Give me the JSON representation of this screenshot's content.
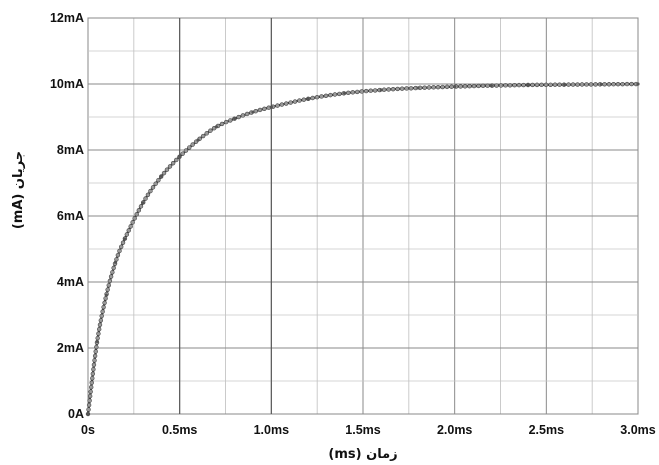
{
  "chart_data": {
    "type": "line",
    "xlabel": "زمان (ms)",
    "ylabel": "جریان (mA)",
    "x_ticks": [
      {
        "value": 0,
        "label": "0s"
      },
      {
        "value": 0.5,
        "label": "0.5ms"
      },
      {
        "value": 1.0,
        "label": "1.0ms"
      },
      {
        "value": 1.5,
        "label": "1.5ms"
      },
      {
        "value": 2.0,
        "label": "2.0ms"
      },
      {
        "value": 2.5,
        "label": "2.5ms"
      },
      {
        "value": 3.0,
        "label": "3.0ms"
      }
    ],
    "y_ticks": [
      {
        "value": 0,
        "label": "0A"
      },
      {
        "value": 2,
        "label": "2mA"
      },
      {
        "value": 4,
        "label": "4mA"
      },
      {
        "value": 6,
        "label": "6mA"
      },
      {
        "value": 8,
        "label": "8mA"
      },
      {
        "value": 10,
        "label": "10mA"
      },
      {
        "value": 12,
        "label": "12mA"
      }
    ],
    "xlim": [
      0,
      3.0
    ],
    "ylim": [
      0,
      12
    ],
    "grid": true,
    "series": [
      {
        "x": [
          0,
          0.05,
          0.1,
          0.15,
          0.2,
          0.3,
          0.4,
          0.5,
          0.6,
          0.7,
          0.8,
          0.9,
          1.0,
          1.2,
          1.4,
          1.6,
          1.8,
          2.0,
          2.2,
          2.4,
          2.6,
          2.8,
          3.0
        ],
        "y": [
          0,
          2.2,
          3.6,
          4.6,
          5.3,
          6.4,
          7.2,
          7.8,
          8.3,
          8.7,
          8.95,
          9.15,
          9.3,
          9.55,
          9.72,
          9.82,
          9.88,
          9.92,
          9.95,
          9.97,
          9.98,
          9.99,
          10.0
        ],
        "color": "#333333"
      }
    ]
  }
}
